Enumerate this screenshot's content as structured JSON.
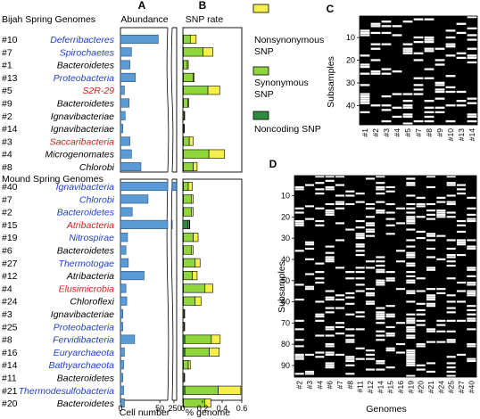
{
  "panel_letters": {
    "a": "A",
    "b": "B",
    "c": "C",
    "d": "D"
  },
  "headers": {
    "abundance": "Abundance",
    "snp_rate": "SNP rate"
  },
  "colors": {
    "abundance_bar": "#5b9bd5",
    "nonsynonymous": "#f4ef4c",
    "synonymous": "#8fd63c",
    "noncoding": "#2e8b3e",
    "blue_label": "#1f3ec9",
    "red_label": "#d21f1f"
  },
  "legend": [
    {
      "label": "Nonsynonymous SNP",
      "color": "#f4ef4c"
    },
    {
      "label": "Synonymous SNP",
      "color": "#8fd63c"
    },
    {
      "label": "Noncoding SNP",
      "color": "#2e8b3e"
    }
  ],
  "chart_data": [
    {
      "type": "bar",
      "panel": "A",
      "title": "Abundance",
      "xlabel": "Cell number",
      "xlim": [
        0,
        250
      ],
      "axis_break": true,
      "xticks": [
        "0",
        "50",
        "250"
      ],
      "groups": [
        {
          "title": "Bijah Spring Genomes",
          "rows": [
            {
              "id": "#10",
              "name": "Deferribacteres",
              "color": "blue",
              "value": 48
            },
            {
              "id": "#7",
              "name": "Spirochaetes",
              "color": "blue",
              "value": 14
            },
            {
              "id": "#1",
              "name": "Bacteroidetes",
              "color": "black",
              "value": 12
            },
            {
              "id": "#13",
              "name": "Proteobacteria",
              "color": "blue",
              "value": 19
            },
            {
              "id": "#5",
              "name": "S2R-29",
              "color": "red",
              "value": 5
            },
            {
              "id": "#9",
              "name": "Bacteroidetes",
              "color": "black",
              "value": 11
            },
            {
              "id": "#2",
              "name": "Ignavibacteriae",
              "color": "black",
              "value": 6
            },
            {
              "id": "#14",
              "name": "Ignavibacteriae",
              "color": "black",
              "value": 3
            },
            {
              "id": "#3",
              "name": "Saccaribacteria",
              "color": "red",
              "value": 12
            },
            {
              "id": "#4",
              "name": "Microgenomates",
              "color": "black",
              "value": 14
            },
            {
              "id": "#8",
              "name": "Chlorobi",
              "color": "black",
              "value": 26
            }
          ]
        },
        {
          "title": "Mound Spring Genomes",
          "rows": [
            {
              "id": "#40",
              "name": "Ignavibacteria",
              "color": "blue",
              "value": 240
            },
            {
              "id": "#7",
              "name": "Chlorobi",
              "color": "blue",
              "value": 35
            },
            {
              "id": "#2",
              "name": "Bacteroidetes",
              "color": "blue",
              "value": 15
            },
            {
              "id": "#15",
              "name": "Atribacteria",
              "color": "red",
              "value": 65
            },
            {
              "id": "#19",
              "name": "Nitrospirae",
              "color": "blue",
              "value": 9
            },
            {
              "id": "#6",
              "name": "Bacteroidetes",
              "color": "black",
              "value": 7
            },
            {
              "id": "#27",
              "name": "Thermotogae",
              "color": "blue",
              "value": 10
            },
            {
              "id": "#12",
              "name": "Atribacteria",
              "color": "black",
              "value": 30
            },
            {
              "id": "#4",
              "name": "Elusimicrobia",
              "color": "red",
              "value": 7
            },
            {
              "id": "#24",
              "name": "Chloroflexi",
              "color": "black",
              "value": 8
            },
            {
              "id": "#3",
              "name": "Ignavibacteriae",
              "color": "black",
              "value": 3
            },
            {
              "id": "#25",
              "name": "Proteobacteria",
              "color": "blue",
              "value": 3
            },
            {
              "id": "#8",
              "name": "Fervidibacteria",
              "color": "blue",
              "value": 18
            },
            {
              "id": "#16",
              "name": "Euryarchaeota",
              "color": "blue",
              "value": 5
            },
            {
              "id": "#14",
              "name": "Bathyarchaeota",
              "color": "blue",
              "value": 4
            },
            {
              "id": "#11",
              "name": "Bacteroidetes",
              "color": "black",
              "value": 3
            },
            {
              "id": "#21",
              "name": "Thermodesulfobacteria",
              "color": "blue",
              "value": 4
            },
            {
              "id": "#20",
              "name": "Bacteroidetes",
              "color": "black",
              "value": 5
            }
          ]
        }
      ]
    },
    {
      "type": "bar",
      "panel": "B",
      "title": "SNP rate",
      "xlabel": "% genome",
      "xlim": [
        0,
        0.6
      ],
      "xticks": [
        "0",
        "0.2",
        "0.4",
        "0.6"
      ],
      "stacked": true,
      "series_order": [
        "noncoding",
        "synonymous",
        "nonsynonymous"
      ],
      "groups": [
        {
          "rows": [
            {
              "id": "#10",
              "noncoding": 0.005,
              "synonymous": 0.07,
              "nonsynonymous": 0.06
            },
            {
              "id": "#7",
              "noncoding": 0.005,
              "synonymous": 0.2,
              "nonsynonymous": 0.1
            },
            {
              "id": "#1",
              "noncoding": 0.005,
              "synonymous": 0.04,
              "nonsynonymous": 0.01
            },
            {
              "id": "#13",
              "noncoding": 0.005,
              "synonymous": 0.1,
              "nonsynonymous": 0.01
            },
            {
              "id": "#5",
              "noncoding": 0.005,
              "synonymous": 0.25,
              "nonsynonymous": 0.12
            },
            {
              "id": "#9",
              "noncoding": 0.005,
              "synonymous": 0.045,
              "nonsynonymous": 0.01
            },
            {
              "id": "#2",
              "noncoding": 0.003,
              "synonymous": 0.01,
              "nonsynonymous": 0.002
            },
            {
              "id": "#14",
              "noncoding": 0.003,
              "synonymous": 0.007,
              "nonsynonymous": 0.002
            },
            {
              "id": "#3",
              "noncoding": 0.005,
              "synonymous": 0.06,
              "nonsynonymous": 0.04
            },
            {
              "id": "#4",
              "noncoding": 0.005,
              "synonymous": 0.26,
              "nonsynonymous": 0.16
            },
            {
              "id": "#8",
              "noncoding": 0.005,
              "synonymous": 0.1,
              "nonsynonymous": 0.04
            }
          ]
        },
        {
          "rows": [
            {
              "id": "#40",
              "noncoding": 0.005,
              "synonymous": 0.05,
              "nonsynonymous": 0.04
            },
            {
              "id": "#7",
              "noncoding": 0.005,
              "synonymous": 0.08,
              "nonsynonymous": 0.02
            },
            {
              "id": "#2",
              "noncoding": 0.005,
              "synonymous": 0.08,
              "nonsynonymous": 0.02
            },
            {
              "id": "#15",
              "noncoding": 0.05,
              "synonymous": 0.015,
              "nonsynonymous": 0.005
            },
            {
              "id": "#19",
              "noncoding": 0.005,
              "synonymous": 0.1,
              "nonsynonymous": 0.05
            },
            {
              "id": "#6",
              "noncoding": 0.005,
              "synonymous": 0.08,
              "nonsynonymous": 0.02
            },
            {
              "id": "#27",
              "noncoding": 0.005,
              "synonymous": 0.12,
              "nonsynonymous": 0.05
            },
            {
              "id": "#12",
              "noncoding": 0.005,
              "synonymous": 0.09,
              "nonsynonymous": 0.05
            },
            {
              "id": "#4",
              "noncoding": 0.005,
              "synonymous": 0.22,
              "nonsynonymous": 0.08
            },
            {
              "id": "#24",
              "noncoding": 0.005,
              "synonymous": 0.12,
              "nonsynonymous": 0.06
            },
            {
              "id": "#3",
              "noncoding": 0.003,
              "synonymous": 0.01,
              "nonsynonymous": 0.002
            },
            {
              "id": "#25",
              "noncoding": 0.003,
              "synonymous": 0.01,
              "nonsynonymous": 0.002
            },
            {
              "id": "#8",
              "noncoding": 0.02,
              "synonymous": 0.27,
              "nonsynonymous": 0.09
            },
            {
              "id": "#16",
              "noncoding": 0.02,
              "synonymous": 0.25,
              "nonsynonymous": 0.1
            },
            {
              "id": "#14",
              "noncoding": 0.005,
              "synonymous": 0.05,
              "nonsynonymous": 0.02
            },
            {
              "id": "#11",
              "noncoding": 0.003,
              "synonymous": 0.01,
              "nonsynonymous": 0.002
            },
            {
              "id": "#21",
              "noncoding": 0.02,
              "synonymous": 0.34,
              "nonsynonymous": 0.23
            },
            {
              "id": "#20",
              "noncoding": 0.005,
              "synonymous": 0.22,
              "nonsynonymous": 0.06
            }
          ]
        }
      ]
    },
    {
      "type": "heatmap",
      "panel": "C",
      "ylabel": "Subsamples",
      "columns": [
        "#1",
        "#2",
        "#3",
        "#4",
        "#5",
        "#7",
        "#8",
        "#9",
        "#10",
        "#13",
        "#14"
      ],
      "n_rows": 48,
      "yticks": [
        "10",
        "20",
        "30",
        "40"
      ],
      "present_color": "#ffffff",
      "absent_color": "#000000"
    },
    {
      "type": "heatmap",
      "panel": "D",
      "xlabel": "Genomes",
      "ylabel": "Subsamples",
      "columns": [
        "#2",
        "#3",
        "#4",
        "#6",
        "#7",
        "#8",
        "#11",
        "#12",
        "#14",
        "#15",
        "#16",
        "#19",
        "#20",
        "#21",
        "#24",
        "#25",
        "#27",
        "#40"
      ],
      "n_rows": 95,
      "yticks": [
        "10",
        "20",
        "30",
        "40",
        "50",
        "60",
        "70",
        "80",
        "90"
      ],
      "present_color": "#ffffff",
      "absent_color": "#000000"
    }
  ]
}
